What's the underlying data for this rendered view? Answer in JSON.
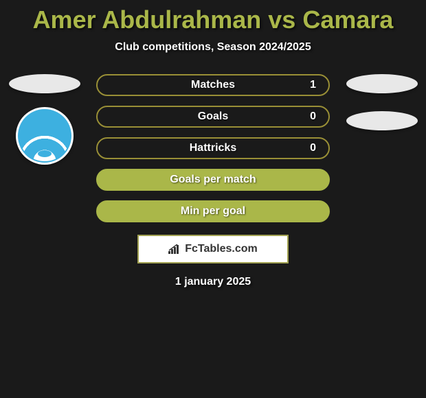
{
  "title": "Amer Abdulrahman vs Camara",
  "subtitle": "Club competitions, Season 2024/2025",
  "stats": [
    {
      "label": "Matches",
      "value": "1",
      "border_color": "#998f36",
      "bg_color": "#1a1a1a"
    },
    {
      "label": "Goals",
      "value": "0",
      "border_color": "#998f36",
      "bg_color": "#1a1a1a"
    },
    {
      "label": "Hattricks",
      "value": "0",
      "border_color": "#998f36",
      "bg_color": "#1a1a1a"
    },
    {
      "label": "Goals per match",
      "value": "",
      "border_color": "#aab749",
      "bg_color": "#aab749"
    },
    {
      "label": "Min per goal",
      "value": "",
      "border_color": "#aab749",
      "bg_color": "#aab749"
    }
  ],
  "footer_brand": "FcTables.com",
  "date": "1 january 2025",
  "colors": {
    "title_color": "#aab749",
    "text_color": "#ffffff",
    "background": "#1a1a1a",
    "avatar_bg": "#e8e8e8",
    "badge_blue": "#3db0e0"
  }
}
